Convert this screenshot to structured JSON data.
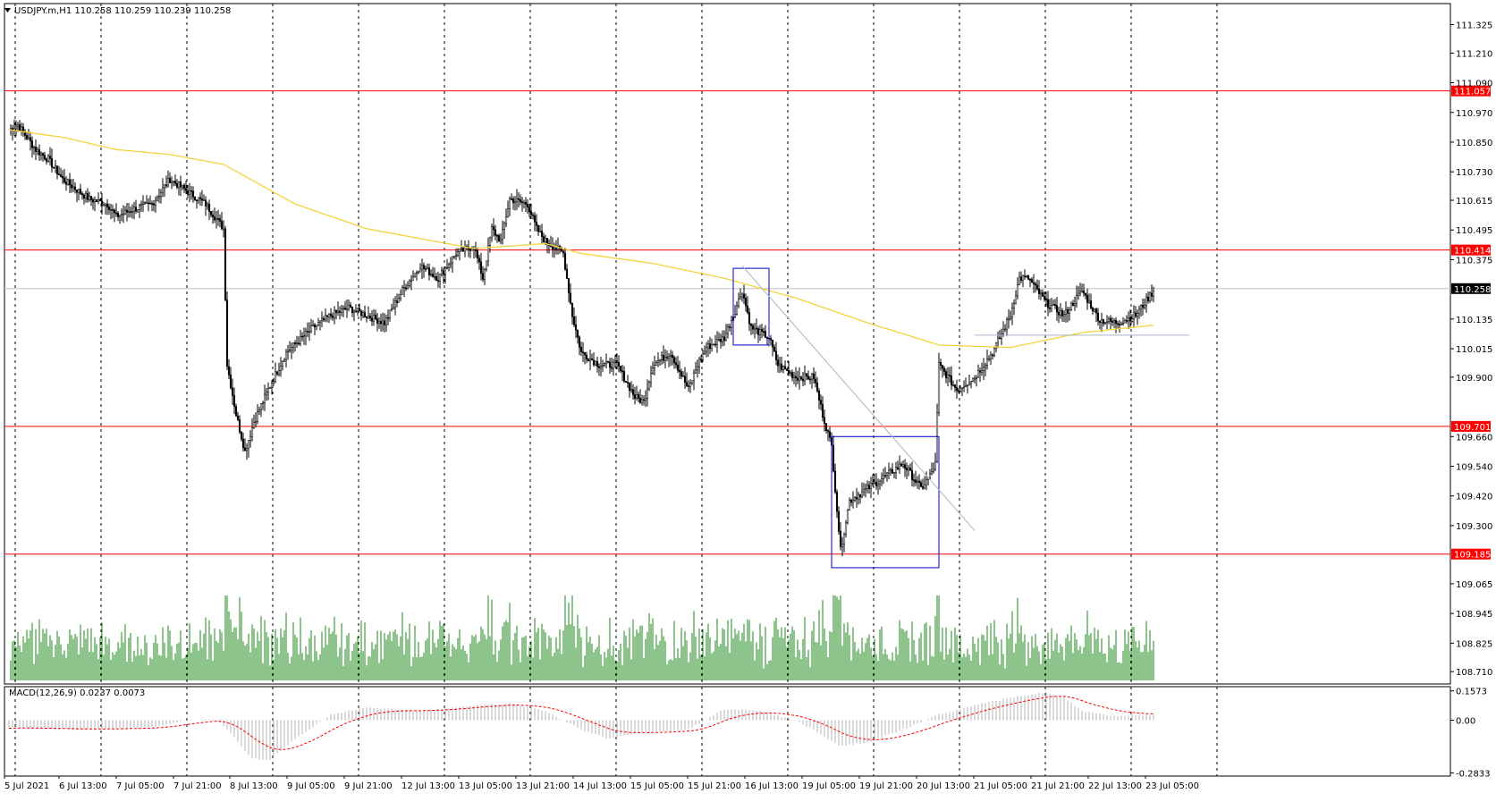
{
  "window": {
    "symbol_info": "USDJPY.m,H1  110.258 110.259 110.239 110.258",
    "macd_info": "MACD(12,26,9) 0.0237 0.0073"
  },
  "colors": {
    "background": "#ffffff",
    "frame": "#000000",
    "candle": "#000000",
    "moving_average": "#f2d43c",
    "level_line": "#ff0000",
    "level_label_bg": "#ff0000",
    "level_label_text": "#ffffff",
    "current_price_line": "#c0c0c0",
    "current_price_label_bg": "#000000",
    "box": "#0000cc",
    "trendline": "#a8b4c8",
    "volume": "#1a8a1a",
    "macd_histogram": "#c0c0c0",
    "macd_signal": "#ff0000"
  },
  "chart_data": {
    "type": "candlestick",
    "instrument": "USDJPY.m",
    "timeframe": "H1",
    "bars_visible": 300,
    "price_axis": {
      "ylim": [
        108.66,
        111.41
      ],
      "ticks": [
        "111.325",
        "111.210",
        "111.090",
        "110.970",
        "110.850",
        "110.730",
        "110.615",
        "110.495",
        "110.375",
        "110.135",
        "110.015",
        "109.900",
        "109.660",
        "109.540",
        "109.420",
        "109.300",
        "109.065",
        "108.945",
        "108.825",
        "108.710"
      ]
    },
    "time_axis": {
      "labels": [
        "5 Jul 2021",
        "6 Jul 13:00",
        "7 Jul 05:00",
        "7 Jul 21:00",
        "8 Jul 13:00",
        "9 Jul 05:00",
        "9 Jul 21:00",
        "12 Jul 13:00",
        "13 Jul 05:00",
        "13 Jul 21:00",
        "14 Jul 13:00",
        "15 Jul 05:00",
        "15 Jul 21:00",
        "16 Jul 13:00",
        "19 Jul 05:00",
        "19 Jul 21:00",
        "20 Jul 13:00",
        "21 Jul 05:00",
        "21 Jul 21:00",
        "22 Jul 13:00",
        "23 Jul 05:00"
      ]
    },
    "levels": [
      {
        "price": 111.057,
        "label": "111.057"
      },
      {
        "price": 110.414,
        "label": "110.414"
      },
      {
        "price": 109.701,
        "label": "109.701"
      },
      {
        "price": 109.185,
        "label": "109.185"
      }
    ],
    "current_price": {
      "price": 110.258,
      "label": "110.258"
    },
    "keypoints": [
      [
        0,
        110.9
      ],
      [
        5,
        110.92
      ],
      [
        15,
        110.82
      ],
      [
        22,
        110.78
      ],
      [
        30,
        110.7
      ],
      [
        45,
        110.62
      ],
      [
        55,
        110.6
      ],
      [
        60,
        110.55
      ],
      [
        70,
        110.58
      ],
      [
        80,
        110.6
      ],
      [
        90,
        110.7
      ],
      [
        100,
        110.65
      ],
      [
        110,
        110.6
      ],
      [
        120,
        110.5
      ],
      [
        122,
        109.95
      ],
      [
        127,
        109.75
      ],
      [
        132,
        109.6
      ],
      [
        137,
        109.72
      ],
      [
        145,
        109.85
      ],
      [
        155,
        110.0
      ],
      [
        170,
        110.1
      ],
      [
        180,
        110.15
      ],
      [
        190,
        110.18
      ],
      [
        210,
        110.12
      ],
      [
        220,
        110.25
      ],
      [
        230,
        110.35
      ],
      [
        240,
        110.3
      ],
      [
        250,
        110.4
      ],
      [
        260,
        110.43
      ],
      [
        265,
        110.3
      ],
      [
        270,
        110.5
      ],
      [
        275,
        110.45
      ],
      [
        280,
        110.62
      ],
      [
        290,
        110.6
      ],
      [
        295,
        110.5
      ],
      [
        300,
        110.45
      ],
      [
        310,
        110.4
      ],
      [
        315,
        110.15
      ],
      [
        320,
        110.0
      ],
      [
        330,
        109.95
      ],
      [
        340,
        109.95
      ],
      [
        350,
        109.82
      ],
      [
        355,
        109.8
      ],
      [
        360,
        109.95
      ],
      [
        370,
        110.0
      ],
      [
        380,
        109.85
      ],
      [
        385,
        109.95
      ],
      [
        390,
        110.02
      ],
      [
        400,
        110.06
      ],
      [
        405,
        110.15
      ],
      [
        410,
        110.25
      ],
      [
        415,
        110.1
      ],
      [
        420,
        110.08
      ],
      [
        425,
        110.06
      ],
      [
        430,
        109.95
      ],
      [
        440,
        109.9
      ],
      [
        450,
        109.9
      ],
      [
        455,
        109.75
      ],
      [
        460,
        109.62
      ],
      [
        462,
        109.45
      ],
      [
        465,
        109.2
      ],
      [
        470,
        109.4
      ],
      [
        480,
        109.45
      ],
      [
        490,
        109.5
      ],
      [
        500,
        109.55
      ],
      [
        505,
        109.5
      ],
      [
        510,
        109.45
      ],
      [
        515,
        109.5
      ],
      [
        518,
        109.55
      ],
      [
        520,
        109.95
      ],
      [
        530,
        109.85
      ],
      [
        540,
        109.9
      ],
      [
        550,
        110.0
      ],
      [
        560,
        110.15
      ],
      [
        565,
        110.3
      ],
      [
        570,
        110.3
      ],
      [
        580,
        110.2
      ],
      [
        590,
        110.15
      ],
      [
        600,
        110.25
      ],
      [
        610,
        110.13
      ],
      [
        620,
        110.12
      ],
      [
        630,
        110.15
      ],
      [
        640,
        110.25
      ]
    ],
    "moving_average_keypoints": [
      [
        0,
        110.9
      ],
      [
        30,
        110.87
      ],
      [
        60,
        110.82
      ],
      [
        90,
        110.8
      ],
      [
        120,
        110.76
      ],
      [
        160,
        110.6
      ],
      [
        200,
        110.5
      ],
      [
        260,
        110.42
      ],
      [
        300,
        110.44
      ],
      [
        320,
        110.4
      ],
      [
        360,
        110.36
      ],
      [
        400,
        110.3
      ],
      [
        440,
        110.22
      ],
      [
        480,
        110.12
      ],
      [
        520,
        110.03
      ],
      [
        560,
        110.02
      ],
      [
        600,
        110.08
      ],
      [
        640,
        110.11
      ]
    ],
    "volume": {
      "max": 1.0
    },
    "macd": {
      "ylim": [
        -0.3,
        0.18
      ],
      "ticks": [
        "0.1573",
        "0.00",
        "-0.2833"
      ],
      "keypoints": [
        [
          0,
          -0.04
        ],
        [
          40,
          -0.05
        ],
        [
          80,
          -0.04
        ],
        [
          100,
          0.0
        ],
        [
          115,
          0.01
        ],
        [
          125,
          -0.08
        ],
        [
          135,
          -0.2
        ],
        [
          145,
          -0.22
        ],
        [
          160,
          -0.1
        ],
        [
          180,
          0.03
        ],
        [
          200,
          0.07
        ],
        [
          230,
          0.05
        ],
        [
          260,
          0.08
        ],
        [
          280,
          0.09
        ],
        [
          300,
          0.05
        ],
        [
          320,
          -0.05
        ],
        [
          335,
          -0.1
        ],
        [
          350,
          -0.07
        ],
        [
          380,
          -0.05
        ],
        [
          400,
          0.06
        ],
        [
          420,
          0.05
        ],
        [
          440,
          0.0
        ],
        [
          455,
          -0.08
        ],
        [
          465,
          -0.14
        ],
        [
          480,
          -0.12
        ],
        [
          500,
          -0.05
        ],
        [
          520,
          0.03
        ],
        [
          540,
          0.08
        ],
        [
          560,
          0.12
        ],
        [
          580,
          0.15
        ],
        [
          590,
          0.12
        ],
        [
          600,
          0.05
        ],
        [
          620,
          0.02
        ],
        [
          640,
          0.03
        ]
      ]
    }
  }
}
